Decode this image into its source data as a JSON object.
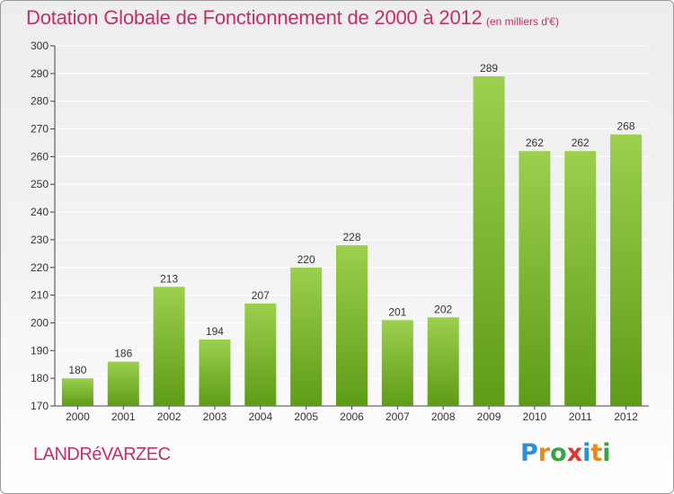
{
  "header": {
    "title": "Dotation Globale de Fonctionnement de 2000 à 2012",
    "unit": "(en milliers d'€)"
  },
  "footer": {
    "commune": "LANDRéVARZEC",
    "logo_text": "Proxiti",
    "logo_letters": [
      {
        "ch": "P",
        "color": "#2f8fd0"
      },
      {
        "ch": "r",
        "color": "#e58a1f"
      },
      {
        "ch": "o",
        "color": "#3aa34a"
      },
      {
        "ch": "x",
        "color": "#d93a2f"
      },
      {
        "ch": "i",
        "color": "#2f8fd0"
      },
      {
        "ch": "t",
        "color": "#e58a1f"
      },
      {
        "ch": "i",
        "color": "#3aa34a"
      }
    ]
  },
  "colors": {
    "bar_top": "#9ccf4e",
    "bar_bottom": "#5e9c18",
    "title": "#c0306a",
    "grid": "#ffffff"
  },
  "chart_data": {
    "type": "bar",
    "title": "Dotation Globale de Fonctionnement de 2000 à 2012",
    "subtitle": "(en milliers d'€)",
    "xlabel": "",
    "ylabel": "",
    "categories": [
      "2000",
      "2001",
      "2002",
      "2003",
      "2004",
      "2005",
      "2006",
      "2007",
      "2008",
      "2009",
      "2010",
      "2011",
      "2012"
    ],
    "values": [
      180,
      186,
      213,
      194,
      207,
      220,
      228,
      201,
      202,
      289,
      262,
      262,
      268
    ],
    "ylim": [
      170,
      300
    ],
    "yticks": [
      170,
      180,
      190,
      200,
      210,
      220,
      230,
      240,
      250,
      260,
      270,
      280,
      290,
      300
    ],
    "grid": true,
    "legend": "none"
  }
}
